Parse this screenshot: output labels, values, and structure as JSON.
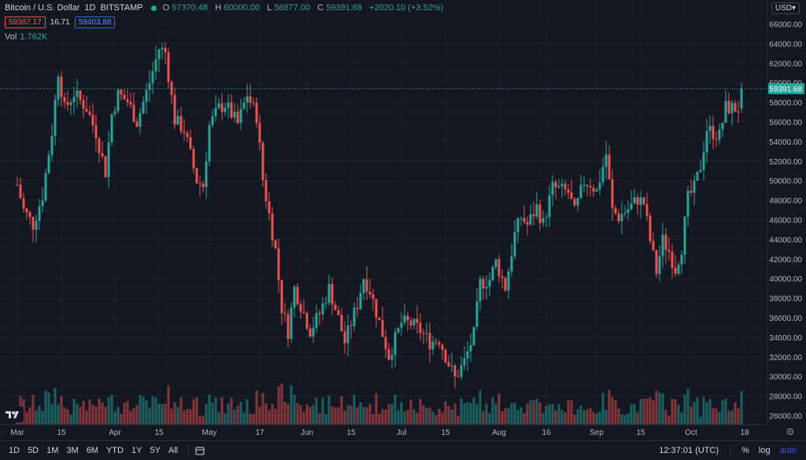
{
  "header": {
    "symbol": "Bitcoin / U.S. Dollar",
    "interval": "1D",
    "exchange": "BITSTAMP",
    "open_label": "O",
    "open": "57370.48",
    "high_label": "H",
    "high": "60000.00",
    "low_label": "L",
    "low": "56877.00",
    "close_label": "C",
    "close": "59391.68",
    "change": "+2020.10 (+3.52%)",
    "sell": "59387.17",
    "spread": "16.71",
    "buy": "59403.88",
    "vol_label": "Vol",
    "vol_value": "1.762K",
    "currency": "USD"
  },
  "bottom": {
    "ranges": [
      "1D",
      "5D",
      "1M",
      "3M",
      "6M",
      "YTD",
      "1Y",
      "5Y",
      "All"
    ],
    "time": "12:37:01 (UTC)",
    "percent": "%",
    "log": "log",
    "auto": "auto"
  },
  "colors": {
    "up": "#26a69a",
    "down": "#ef5350",
    "grid": "#1e222d",
    "bg": "#131722",
    "text": "#b2b5be"
  },
  "chart_data": {
    "type": "candlestick",
    "ylim": [
      25000,
      68000
    ],
    "y_ticks": [
      26000,
      28000,
      30000,
      32000,
      34000,
      36000,
      38000,
      40000,
      42000,
      44000,
      46000,
      48000,
      50000,
      52000,
      54000,
      56000,
      58000,
      60000,
      62000,
      64000,
      66000
    ],
    "y_tick_labels": [
      "26000.00",
      "28000.00",
      "30000.00",
      "32000.00",
      "34000.00",
      "36000.00",
      "38000.00",
      "40000.00",
      "42000.00",
      "44000.00",
      "46000.00",
      "48000.00",
      "50000.00",
      "52000.00",
      "54000.00",
      "56000.00",
      "58000.00",
      "60000.00",
      "62000.00",
      "64000.00",
      "66000.00"
    ],
    "x_tick_labels": [
      "Mar",
      "15",
      "Apr",
      "15",
      "May",
      "17",
      "Jun",
      "15",
      "Jul",
      "15",
      "Aug",
      "16",
      "Sep",
      "15",
      "Oct",
      "18"
    ],
    "x_tick_days": [
      0,
      14,
      31,
      45,
      61,
      77,
      92,
      106,
      122,
      136,
      153,
      168,
      184,
      198,
      214,
      231
    ],
    "current_price": 59391.68,
    "current_price_label": "59391.68",
    "close_keypoints": [
      [
        0,
        49600
      ],
      [
        2,
        47000
      ],
      [
        5,
        45500
      ],
      [
        8,
        48500
      ],
      [
        11,
        55000
      ],
      [
        13,
        61200
      ],
      [
        15,
        57300
      ],
      [
        18,
        58900
      ],
      [
        22,
        57400
      ],
      [
        25,
        54900
      ],
      [
        28,
        50900
      ],
      [
        30,
        56800
      ],
      [
        32,
        58800
      ],
      [
        35,
        58100
      ],
      [
        38,
        56000
      ],
      [
        42,
        60000
      ],
      [
        45,
        63500
      ],
      [
        47,
        63100
      ],
      [
        50,
        56200
      ],
      [
        53,
        55200
      ],
      [
        57,
        50000
      ],
      [
        59,
        49500
      ],
      [
        61,
        55600
      ],
      [
        64,
        57400
      ],
      [
        66,
        57800
      ],
      [
        70,
        55800
      ],
      [
        73,
        58800
      ],
      [
        76,
        56600
      ],
      [
        78,
        50100
      ],
      [
        80,
        46500
      ],
      [
        82,
        42900
      ],
      [
        84,
        37000
      ],
      [
        86,
        34600
      ],
      [
        88,
        39000
      ],
      [
        90,
        37300
      ],
      [
        93,
        34700
      ],
      [
        96,
        36400
      ],
      [
        99,
        39000
      ],
      [
        102,
        35900
      ],
      [
        104,
        33500
      ],
      [
        108,
        37400
      ],
      [
        110,
        40100
      ],
      [
        112,
        38800
      ],
      [
        115,
        35500
      ],
      [
        118,
        32100
      ],
      [
        122,
        35500
      ],
      [
        125,
        35400
      ],
      [
        128,
        34700
      ],
      [
        131,
        33500
      ],
      [
        134,
        33800
      ],
      [
        137,
        31300
      ],
      [
        139,
        29800
      ],
      [
        142,
        31500
      ],
      [
        145,
        34300
      ],
      [
        147,
        39500
      ],
      [
        150,
        39900
      ],
      [
        152,
        41700
      ],
      [
        155,
        39100
      ],
      [
        158,
        44500
      ],
      [
        160,
        46300
      ],
      [
        162,
        45500
      ],
      [
        165,
        47300
      ],
      [
        167,
        45600
      ],
      [
        170,
        49300
      ],
      [
        172,
        49100
      ],
      [
        175,
        48800
      ],
      [
        177,
        46700
      ],
      [
        180,
        49900
      ],
      [
        182,
        49700
      ],
      [
        184,
        48900
      ],
      [
        187,
        52700
      ],
      [
        189,
        46900
      ],
      [
        191,
        46300
      ],
      [
        194,
        47100
      ],
      [
        197,
        48100
      ],
      [
        199,
        47700
      ],
      [
        201,
        43900
      ],
      [
        203,
        40700
      ],
      [
        205,
        43900
      ],
      [
        207,
        42800
      ],
      [
        209,
        41000
      ],
      [
        211,
        43200
      ],
      [
        213,
        48200
      ],
      [
        215,
        49200
      ],
      [
        217,
        51500
      ],
      [
        219,
        55300
      ],
      [
        221,
        54900
      ],
      [
        223,
        54600
      ],
      [
        225,
        57500
      ],
      [
        227,
        57400
      ],
      [
        229,
        57370
      ],
      [
        230,
        59391
      ]
    ]
  }
}
